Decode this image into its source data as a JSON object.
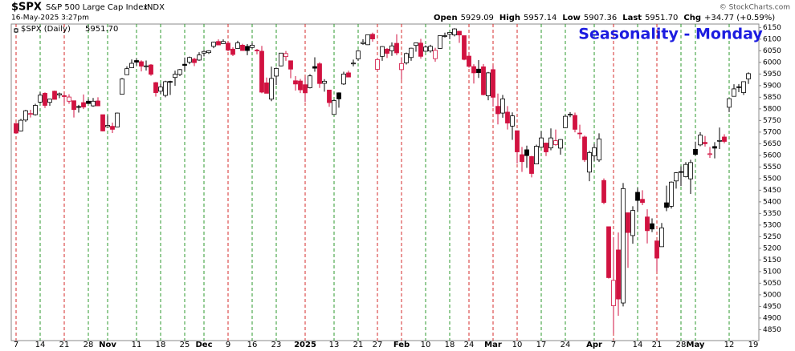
{
  "chart_data": {
    "type": "candlestick",
    "symbol": "$SPX",
    "name": "S&P 500 Large Cap Index",
    "exchange": "INDX",
    "timestamp": "16-May-2025 3:27pm",
    "quote": [
      {
        "label": "Open",
        "value": "5929.09"
      },
      {
        "label": "High",
        "value": "5957.14"
      },
      {
        "label": "Low",
        "value": "5907.36"
      },
      {
        "label": "Last",
        "value": "5951.70"
      },
      {
        "label": "Chg",
        "value": "+34.77 (+0.59%)"
      }
    ],
    "copyright": "© StockCharts.com",
    "annotation": "Seasonality - Monday",
    "ylim": [
      4810,
      6165
    ],
    "yticks": [
      4850,
      4900,
      4950,
      5000,
      5050,
      5100,
      5150,
      5200,
      5250,
      5300,
      5350,
      5400,
      5450,
      5500,
      5550,
      5600,
      5650,
      5700,
      5750,
      5800,
      5850,
      5900,
      5950,
      6000,
      6050,
      6100,
      6150
    ],
    "categories": [
      "7",
      null,
      null,
      null,
      null,
      "14",
      null,
      null,
      null,
      null,
      "21",
      null,
      null,
      null,
      null,
      "28",
      null,
      null,
      null,
      "Nov",
      null,
      null,
      null,
      null,
      null,
      "11",
      null,
      null,
      null,
      null,
      "18",
      null,
      null,
      null,
      null,
      "25",
      null,
      null,
      null,
      "Dec",
      null,
      null,
      null,
      null,
      "9",
      null,
      null,
      null,
      null,
      "16",
      null,
      null,
      null,
      null,
      "23",
      null,
      null,
      null,
      null,
      null,
      "2025",
      null,
      null,
      null,
      null,
      null,
      "13",
      null,
      null,
      null,
      null,
      "21",
      null,
      null,
      null,
      "27",
      null,
      null,
      null,
      null,
      "Feb",
      null,
      null,
      null,
      null,
      "10",
      null,
      null,
      null,
      null,
      "18",
      null,
      null,
      null,
      "24",
      null,
      null,
      null,
      null,
      "Mar",
      null,
      null,
      null,
      null,
      "10",
      null,
      null,
      null,
      null,
      "17",
      null,
      null,
      null,
      null,
      "24",
      null,
      null,
      null,
      null,
      null,
      "Apr",
      null,
      null,
      null,
      "7",
      null,
      null,
      null,
      null,
      "14",
      null,
      null,
      null,
      "21",
      null,
      null,
      null,
      null,
      "28",
      null,
      null,
      "May",
      null,
      null,
      null,
      null,
      null,
      null,
      "12",
      null,
      null,
      null,
      null,
      "19"
    ],
    "series": [
      {
        "name": "$SPX (Daily)",
        "last_label": "5951.70",
        "ohlc": [
          [
            5737,
            5739,
            5693,
            5696
          ],
          [
            5705,
            5757,
            5703,
            5751
          ],
          [
            5752,
            5796,
            5744,
            5792
          ],
          [
            5778,
            5796,
            5763,
            5780
          ],
          [
            5775,
            5822,
            5771,
            5815
          ],
          [
            5829,
            5871,
            5824,
            5859
          ],
          [
            5867,
            5871,
            5804,
            5815
          ],
          [
            5828,
            5843,
            5813,
            5842
          ],
          [
            5876,
            5879,
            5840,
            5841
          ],
          [
            5860,
            5870,
            5846,
            5865
          ],
          [
            5857,
            5867,
            5824,
            5853
          ],
          [
            5833,
            5863,
            5822,
            5851
          ],
          [
            5835,
            5835,
            5763,
            5797
          ],
          [
            5810,
            5817,
            5784,
            5809
          ],
          [
            5827,
            5862,
            5799,
            5808
          ],
          [
            5833,
            5843,
            5823,
            5823
          ],
          [
            5813,
            5847,
            5809,
            5833
          ],
          [
            5834,
            5850,
            5812,
            5813
          ],
          [
            5775,
            5775,
            5703,
            5705
          ],
          [
            5723,
            5772,
            5723,
            5729
          ],
          [
            5725,
            5741,
            5696,
            5712
          ],
          [
            5722,
            5784,
            5722,
            5782
          ],
          [
            5863,
            5933,
            5863,
            5929
          ],
          [
            5947,
            5983,
            5947,
            5973
          ],
          [
            5977,
            6013,
            5976,
            5996
          ],
          [
            6008,
            6017,
            5986,
            6001
          ],
          [
            6003,
            6009,
            5961,
            5984
          ],
          [
            5985,
            6008,
            5965,
            5985
          ],
          [
            5989,
            5993,
            5942,
            5949
          ],
          [
            5913,
            5916,
            5853,
            5870
          ],
          [
            5876,
            5909,
            5865,
            5894
          ],
          [
            5858,
            5921,
            5850,
            5917
          ],
          [
            5918,
            5921,
            5860,
            5917
          ],
          [
            5935,
            5964,
            5899,
            5949
          ],
          [
            5948,
            5972,
            5941,
            5969
          ],
          [
            5992,
            6021,
            5963,
            5987
          ],
          [
            6001,
            6025,
            5992,
            6021
          ],
          [
            6014,
            6020,
            5984,
            5999
          ],
          [
            6010,
            6044,
            6007,
            6032
          ],
          [
            6040,
            6053,
            6026,
            6047
          ],
          [
            6042,
            6052,
            6036,
            6050
          ],
          [
            6069,
            6089,
            6061,
            6087
          ],
          [
            6090,
            6099,
            6075,
            6075
          ],
          [
            6081,
            6099,
            6080,
            6090
          ],
          [
            6083,
            6088,
            6048,
            6053
          ],
          [
            6057,
            6065,
            6027,
            6034
          ],
          [
            6060,
            6093,
            6060,
            6084
          ],
          [
            6074,
            6080,
            6051,
            6051
          ],
          [
            6069,
            6079,
            6031,
            6051
          ],
          [
            6064,
            6085,
            6059,
            6074
          ],
          [
            6053,
            6058,
            6035,
            6051
          ],
          [
            6048,
            6071,
            5867,
            5872
          ],
          [
            5912,
            5935,
            5867,
            5867
          ],
          [
            5842,
            5982,
            5833,
            5931
          ],
          [
            5941,
            5978,
            5903,
            5974
          ],
          [
            5985,
            6040,
            5983,
            6040
          ],
          [
            6025,
            6049,
            6007,
            6038
          ],
          [
            6007,
            6007,
            5932,
            5971
          ],
          [
            5921,
            5941,
            5879,
            5907
          ],
          [
            5920,
            5929,
            5868,
            5882
          ],
          [
            5904,
            5936,
            5830,
            5869
          ],
          [
            5891,
            5949,
            5888,
            5942
          ],
          [
            5982,
            6022,
            5960,
            5975
          ],
          [
            5994,
            6001,
            5890,
            5909
          ],
          [
            5910,
            5928,
            5874,
            5919
          ],
          [
            5881,
            5882,
            5809,
            5827
          ],
          [
            5776,
            5841,
            5774,
            5836
          ],
          [
            5869,
            5871,
            5805,
            5843
          ],
          [
            5907,
            5960,
            5903,
            5950
          ],
          [
            5955,
            5964,
            5937,
            5937
          ],
          [
            5996,
            6012,
            5983,
            5997
          ],
          [
            6015,
            6052,
            6007,
            6049
          ],
          [
            6081,
            6100,
            6076,
            6086
          ],
          [
            6076,
            6119,
            6075,
            6119
          ],
          [
            6121,
            6128,
            6089,
            6101
          ],
          [
            5970,
            6018,
            5962,
            6012
          ],
          [
            6026,
            6070,
            6007,
            6068
          ],
          [
            6057,
            6062,
            6019,
            6039
          ],
          [
            6050,
            6086,
            6028,
            6071
          ],
          [
            6082,
            6121,
            6031,
            6041
          ],
          [
            5969,
            6022,
            5924,
            5995
          ],
          [
            5998,
            6042,
            5991,
            6038
          ],
          [
            6021,
            6063,
            6007,
            6061
          ],
          [
            6073,
            6084,
            6046,
            6084
          ],
          [
            6083,
            6101,
            6016,
            6026
          ],
          [
            6048,
            6073,
            6045,
            6066
          ],
          [
            6049,
            6076,
            6042,
            6069
          ],
          [
            6016,
            6063,
            6003,
            6052
          ],
          [
            6060,
            6116,
            6058,
            6115
          ],
          [
            6115,
            6128,
            6107,
            6115
          ],
          [
            6121,
            6130,
            6100,
            6129
          ],
          [
            6118,
            6147,
            6112,
            6144
          ],
          [
            6134,
            6134,
            6084,
            6118
          ],
          [
            6115,
            6115,
            6009,
            6013
          ],
          [
            6027,
            6044,
            5977,
            5983
          ],
          [
            5982,
            5992,
            5909,
            5955
          ],
          [
            5971,
            6010,
            5933,
            5956
          ],
          [
            5981,
            5993,
            5858,
            5861
          ],
          [
            5856,
            5959,
            5837,
            5955
          ],
          [
            5969,
            5987,
            5810,
            5850
          ],
          [
            5811,
            5866,
            5733,
            5779
          ],
          [
            5782,
            5860,
            5762,
            5843
          ],
          [
            5786,
            5812,
            5711,
            5739
          ],
          [
            5726,
            5785,
            5667,
            5770
          ],
          [
            5706,
            5706,
            5565,
            5615
          ],
          [
            5603,
            5636,
            5529,
            5573
          ],
          [
            5624,
            5642,
            5546,
            5599
          ],
          [
            5595,
            5598,
            5505,
            5522
          ],
          [
            5563,
            5646,
            5563,
            5639
          ],
          [
            5635,
            5704,
            5635,
            5675
          ],
          [
            5653,
            5654,
            5597,
            5615
          ],
          [
            5632,
            5716,
            5622,
            5675
          ],
          [
            5646,
            5711,
            5642,
            5663
          ],
          [
            5631,
            5670,
            5603,
            5668
          ],
          [
            5719,
            5775,
            5719,
            5768
          ],
          [
            5775,
            5786,
            5764,
            5777
          ],
          [
            5772,
            5784,
            5699,
            5712
          ],
          [
            5696,
            5732,
            5671,
            5693
          ],
          [
            5679,
            5685,
            5572,
            5581
          ],
          [
            5528,
            5620,
            5489,
            5612
          ],
          [
            5598,
            5650,
            5576,
            5633
          ],
          [
            5580,
            5695,
            5572,
            5671
          ],
          [
            5492,
            5501,
            5390,
            5397
          ],
          [
            5293,
            5293,
            5070,
            5074
          ],
          [
            4953,
            5247,
            4835,
            5062
          ],
          [
            5193,
            5268,
            4910,
            4982
          ],
          [
            4965,
            5481,
            4950,
            5457
          ],
          [
            5353,
            5353,
            5116,
            5268
          ],
          [
            5255,
            5381,
            5220,
            5363
          ],
          [
            5441,
            5460,
            5358,
            5406
          ],
          [
            5411,
            5450,
            5386,
            5397
          ],
          [
            5335,
            5368,
            5221,
            5276
          ],
          [
            5306,
            5329,
            5270,
            5283
          ],
          [
            5232,
            5232,
            5101,
            5158
          ],
          [
            5207,
            5309,
            5207,
            5288
          ],
          [
            5396,
            5470,
            5360,
            5376
          ],
          [
            5381,
            5488,
            5371,
            5485
          ],
          [
            5490,
            5528,
            5457,
            5525
          ],
          [
            5530,
            5553,
            5468,
            5529
          ],
          [
            5508,
            5571,
            5505,
            5561
          ],
          [
            5499,
            5581,
            5434,
            5569
          ],
          [
            5626,
            5659,
            5599,
            5604
          ],
          [
            5645,
            5700,
            5639,
            5687
          ],
          [
            5656,
            5683,
            5638,
            5650
          ],
          [
            5606,
            5636,
            5589,
            5607
          ],
          [
            5638,
            5657,
            5587,
            5631
          ],
          [
            5662,
            5720,
            5627,
            5664
          ],
          [
            5679,
            5691,
            5652,
            5660
          ],
          [
            5807,
            5845,
            5786,
            5844
          ],
          [
            5854,
            5906,
            5853,
            5886
          ],
          [
            5895,
            5907,
            5872,
            5893
          ],
          [
            5870,
            5917,
            5860,
            5917
          ],
          [
            5929.09,
            5957.14,
            5907.36,
            5951.7
          ],
          null
        ]
      }
    ],
    "colors": {
      "up": "#000000",
      "down": "#d11240",
      "monday_up": "#2e9a2e",
      "monday_down": "#d62b2b",
      "annotation": "#1c1ce0"
    },
    "grid": true
  }
}
